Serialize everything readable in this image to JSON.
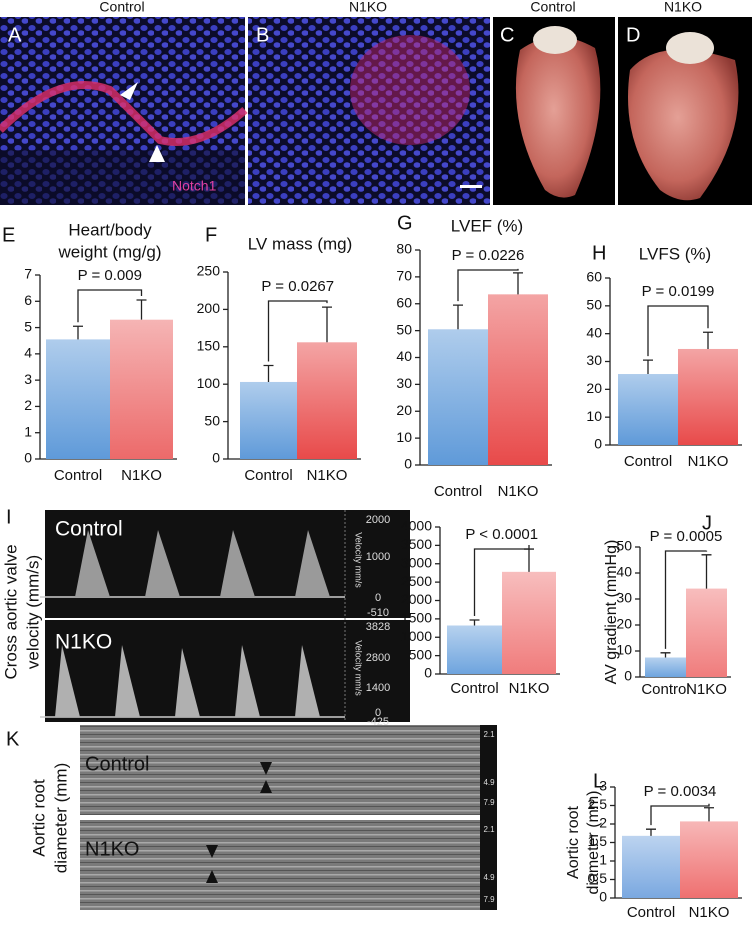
{
  "images": {
    "A": {
      "letter": "A",
      "heading": "Control",
      "stain": "Notch1"
    },
    "B": {
      "letter": "B",
      "heading": "N1KO"
    },
    "C": {
      "letter": "C",
      "heading": "Control"
    },
    "D": {
      "letter": "D",
      "heading": "N1KO"
    },
    "I": {
      "letter": "I",
      "ylabel": [
        "Cross aortic valve",
        "velocity (mm/s)"
      ],
      "traces": [
        {
          "label": "Control",
          "scale": [
            "2000",
            "1000",
            "0",
            "-510"
          ],
          "unit": "Velocity mm/s"
        },
        {
          "label": "N1KO",
          "scale": [
            "3828",
            "2800",
            "1400",
            "0",
            "-425"
          ],
          "unit": "Velocity mm/s"
        }
      ]
    },
    "K": {
      "letter": "K",
      "ylabel": [
        "Aortic root",
        "diameter (mm)"
      ],
      "traces": [
        {
          "label": "Control",
          "scale": [
            "2.1",
            "4.9",
            "7.9"
          ]
        },
        {
          "label": "N1KO",
          "scale": [
            "2.1",
            "4.9",
            "7.9"
          ]
        }
      ]
    }
  },
  "chart_data": [
    {
      "type": "bar",
      "letter": "E",
      "title": [
        "Heart/body",
        "weight (mg/g)"
      ],
      "annotation": "P = 0.009",
      "categories": [
        "Control",
        "N1KO"
      ],
      "values": [
        4.55,
        5.3
      ],
      "errors": [
        0.5,
        0.75
      ],
      "colors": [
        "#5f9ad9",
        "#ec6a6a"
      ],
      "ylim": [
        0,
        7
      ],
      "yticks": [
        0,
        1,
        2,
        3,
        4,
        5,
        6,
        7
      ]
    },
    {
      "type": "bar",
      "letter": "F",
      "title": "LV mass (mg)",
      "annotation": "P = 0.0267",
      "categories": [
        "Control",
        "N1KO"
      ],
      "values": [
        103,
        156
      ],
      "errors": [
        22,
        47
      ],
      "colors": [
        "#5f9ad9",
        "#e84a4a"
      ],
      "ylim": [
        0,
        250
      ],
      "yticks": [
        0,
        50,
        100,
        150,
        200,
        250
      ]
    },
    {
      "type": "bar",
      "letter": "G",
      "title": "LVEF (%)",
      "annotation": "P = 0.0226",
      "categories": [
        "Control",
        "N1KO"
      ],
      "values": [
        50.5,
        63.5
      ],
      "errors": [
        9,
        8
      ],
      "colors": [
        "#5f9ad9",
        "#e84a4a"
      ],
      "ylim": [
        0,
        80
      ],
      "yticks": [
        0,
        10,
        20,
        30,
        40,
        50,
        60,
        70,
        80
      ]
    },
    {
      "type": "bar",
      "letter": "H",
      "title": "LVFS (%)",
      "annotation": "P = 0.0199",
      "categories": [
        "Control",
        "N1KO"
      ],
      "values": [
        25.5,
        34.5
      ],
      "errors": [
        5,
        6
      ],
      "colors": [
        "#5f9ad9",
        "#e84a4a"
      ],
      "ylim": [
        0,
        60
      ],
      "yticks": [
        0,
        10,
        20,
        30,
        40,
        50,
        60
      ]
    },
    {
      "type": "bar",
      "annotation": "P < 0.0001",
      "categories": [
        "Control",
        "N1KO"
      ],
      "values": [
        1320,
        2780
      ],
      "errors": [
        150,
        620
      ],
      "colors": [
        "#6ea4de",
        "#f07c7c"
      ],
      "ylim": [
        0,
        4000
      ],
      "yticks": [
        0,
        500,
        1000,
        1500,
        2000,
        2500,
        3000,
        3500,
        4000
      ]
    },
    {
      "type": "bar",
      "letter": "J",
      "ylabel": "AV gradient (mmHg)",
      "annotation": "P = 0.0005",
      "categories": [
        "Control",
        "N1KO"
      ],
      "values": [
        7.5,
        34
      ],
      "errors": [
        1.8,
        13
      ],
      "colors": [
        "#6ea4de",
        "#f07c7c"
      ],
      "ylim": [
        0,
        50
      ],
      "yticks": [
        0,
        10,
        20,
        30,
        40,
        50
      ]
    },
    {
      "type": "bar",
      "letter": "L",
      "ylabel": [
        "Aortic root",
        "diameter (mm)"
      ],
      "annotation": "P = 0.0034",
      "categories": [
        "Control",
        "N1KO"
      ],
      "values": [
        1.68,
        2.07
      ],
      "errors": [
        0.18,
        0.37
      ],
      "colors": [
        "#7aa8e0",
        "#ef7070"
      ],
      "ylim": [
        0,
        3
      ],
      "yticks": [
        0,
        0.5,
        1,
        1.5,
        2,
        2.5,
        3
      ]
    }
  ]
}
